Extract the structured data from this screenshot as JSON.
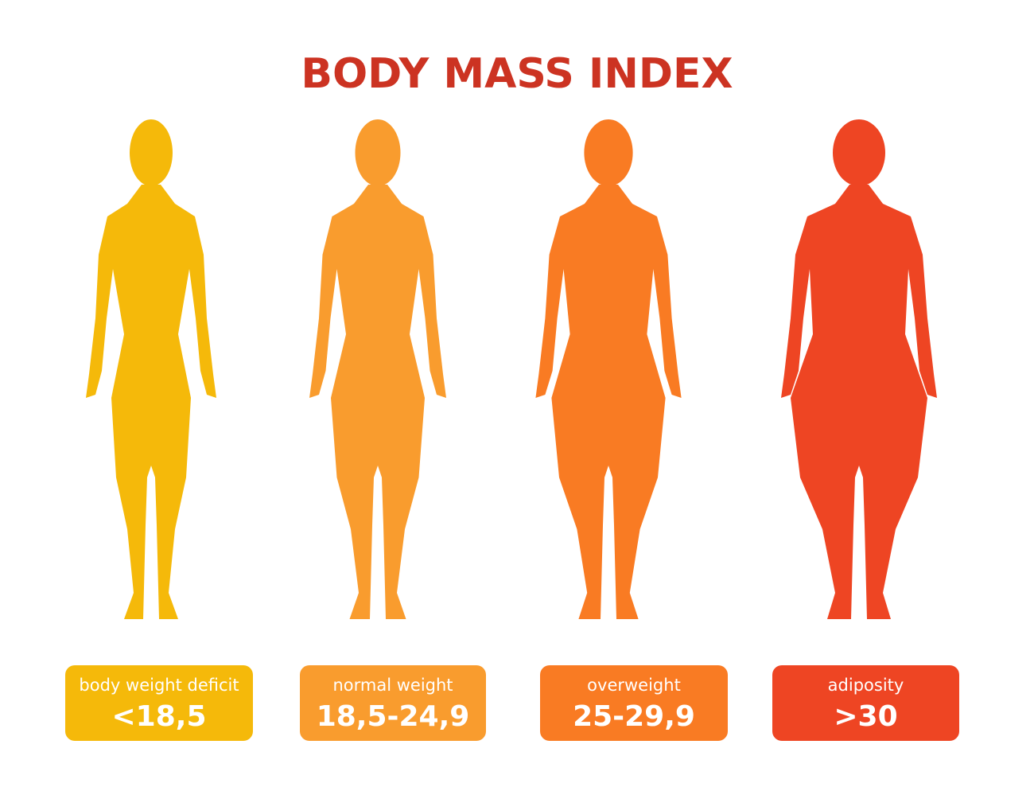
{
  "header": {
    "title": "BODY MASS INDEX"
  },
  "categories": [
    {
      "label": "body weight deficit",
      "range": "<18,5",
      "color": "#f5b90a"
    },
    {
      "label": "normal weight",
      "range": "18,5-24,9",
      "color": "#f99c2e"
    },
    {
      "label": "overweight",
      "range": "25-29,9",
      "color": "#f97b23"
    },
    {
      "label": "adiposity",
      "range": ">30",
      "color": "#ee4523"
    }
  ]
}
